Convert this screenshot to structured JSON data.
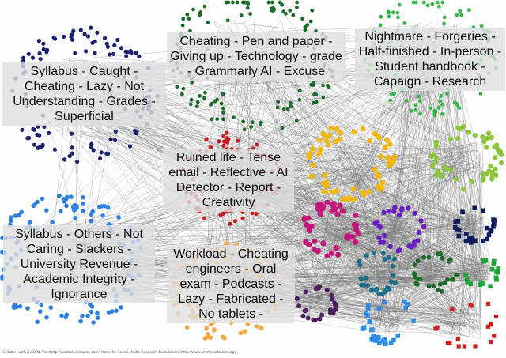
{
  "clusters": [
    {
      "id": "c1",
      "label": "Syllabus - Caught - Cheating - Lazy - Not Understanding - Grades - Superficial",
      "color": "#5a6aa8"
    },
    {
      "id": "c2",
      "label": "Cheating - Pen and paper - Giving up - Technology - grade - Grammarly AI - Excuse",
      "color": "#2e8b3a"
    },
    {
      "id": "c3",
      "label": "Nightmare - Forgeries - Half-finished - In-person - Student handbook - Capaign - Research",
      "color": "#39b54a"
    },
    {
      "id": "c4",
      "label": "Ruined life - Tense email - Reflective - AI Detector - Report - Creativity",
      "color": "#d42a2a"
    },
    {
      "id": "c5",
      "label": "Syllabus - Others - Not Caring - Slackers - University Revenue - Academic Integrity - Ignorance",
      "color": "#3a8fe0"
    },
    {
      "id": "c6",
      "label": "Workload - Cheating engineers - Oral exam - Podcasts - Lazy - Fabricated - No tablets -",
      "color": "#f0a030"
    }
  ],
  "colors": {
    "edge": "#777777",
    "navy": "#1a1f6e",
    "dark_green": "#1c6b2a",
    "green": "#39b54a",
    "red": "#cc1e1e",
    "blue": "#2f7fe0",
    "orange": "#f4a640",
    "yellow": "#f2b705",
    "lime": "#8cc63f",
    "magenta": "#c2187a",
    "purple": "#6a1fc2",
    "teal": "#1f6f8b",
    "dark_purple": "#4b1f5e",
    "sky": "#2b8be8",
    "dark_navy": "#0f1a5c",
    "bright_green": "#1ea53a"
  },
  "credit": "Created with NodeXL Pro (http://nodexl.codeplex.com) from the Social Media Research Foundation (http://www.smrfoundation.org)"
}
